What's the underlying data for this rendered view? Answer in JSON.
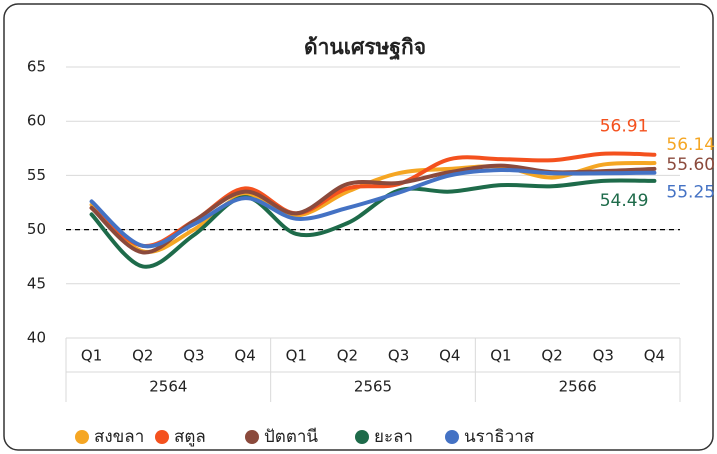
{
  "chart_data": {
    "type": "line",
    "title": "ด้านเศรษฐกิจ",
    "categories": [
      "Q1",
      "Q2",
      "Q3",
      "Q4",
      "Q1",
      "Q2",
      "Q3",
      "Q4",
      "Q1",
      "Q2",
      "Q3",
      "Q4"
    ],
    "category_groups": [
      "2564",
      "2565",
      "2566"
    ],
    "ylim": [
      40,
      65
    ],
    "yticks": [
      40,
      45,
      50,
      55,
      60,
      65
    ],
    "grid": true,
    "reference_line": {
      "value": 50,
      "style": "dashed"
    },
    "smooth": true,
    "legend": "bottom",
    "series": [
      {
        "name": "สงขลา",
        "color": "#f5a623",
        "values": [
          52.3,
          48.0,
          50.0,
          53.2,
          51.3,
          53.5,
          55.2,
          55.6,
          55.8,
          54.8,
          56.0,
          56.14
        ],
        "value_labels": [
          null,
          null,
          null,
          null,
          null,
          null,
          null,
          null,
          null,
          null,
          null,
          "56.14"
        ]
      },
      {
        "name": "สตูล",
        "color": "#f4511e",
        "values": [
          52.0,
          48.5,
          50.8,
          53.8,
          51.5,
          53.8,
          54.2,
          56.5,
          56.5,
          56.4,
          57.0,
          56.91
        ],
        "value_labels": [
          null,
          null,
          null,
          null,
          null,
          null,
          null,
          null,
          null,
          null,
          null,
          "56.91"
        ]
      },
      {
        "name": "ปัตตานี",
        "color": "#8b4a3c",
        "values": [
          52.0,
          47.9,
          50.8,
          53.5,
          51.5,
          54.2,
          54.3,
          55.3,
          55.9,
          55.3,
          55.4,
          55.6
        ],
        "value_labels": [
          null,
          null,
          null,
          null,
          null,
          null,
          null,
          null,
          null,
          null,
          null,
          "55.60"
        ]
      },
      {
        "name": "ยะลา",
        "color": "#1e6b4a",
        "values": [
          51.4,
          46.6,
          49.5,
          53.0,
          49.6,
          50.6,
          53.6,
          53.5,
          54.1,
          54.0,
          54.5,
          54.49
        ],
        "value_labels": [
          null,
          null,
          null,
          null,
          null,
          null,
          null,
          null,
          null,
          null,
          null,
          "54.49"
        ]
      },
      {
        "name": "นราธิวาส",
        "color": "#4472c4",
        "values": [
          52.6,
          48.5,
          50.5,
          52.9,
          51.0,
          52.0,
          53.4,
          55.0,
          55.5,
          55.2,
          55.2,
          55.25
        ],
        "value_labels": [
          null,
          null,
          null,
          null,
          null,
          null,
          null,
          null,
          null,
          null,
          null,
          "55.25"
        ]
      }
    ]
  }
}
